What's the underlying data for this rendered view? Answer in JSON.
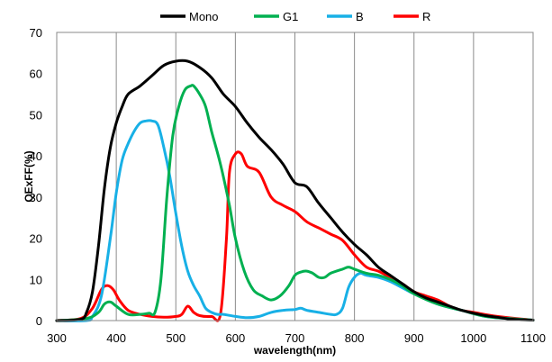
{
  "chart_data": {
    "type": "line",
    "xlabel": "wavelength(nm)",
    "ylabel": "QExFF(%)",
    "xlim": [
      300,
      1100
    ],
    "ylim": [
      0,
      70
    ],
    "x_ticks": [
      300,
      400,
      500,
      600,
      700,
      800,
      900,
      1000,
      1100
    ],
    "y_ticks": [
      0,
      10,
      20,
      30,
      40,
      50,
      60,
      70
    ],
    "grid": "vertical",
    "legend_position": "top",
    "series": [
      {
        "name": "Mono",
        "color": "#000000",
        "points": [
          [
            300,
            0
          ],
          [
            340,
            0.3
          ],
          [
            350,
            2
          ],
          [
            360,
            7
          ],
          [
            370,
            18
          ],
          [
            380,
            32
          ],
          [
            390,
            42
          ],
          [
            400,
            48
          ],
          [
            410,
            52
          ],
          [
            420,
            55
          ],
          [
            440,
            57
          ],
          [
            460,
            59.5
          ],
          [
            480,
            62
          ],
          [
            500,
            63
          ],
          [
            520,
            63
          ],
          [
            540,
            61.5
          ],
          [
            560,
            59
          ],
          [
            580,
            55
          ],
          [
            600,
            52
          ],
          [
            620,
            48
          ],
          [
            640,
            44.5
          ],
          [
            660,
            41.5
          ],
          [
            680,
            38
          ],
          [
            700,
            33.5
          ],
          [
            720,
            32.5
          ],
          [
            740,
            28.5
          ],
          [
            760,
            25
          ],
          [
            780,
            21.5
          ],
          [
            800,
            18.5
          ],
          [
            820,
            16
          ],
          [
            840,
            13
          ],
          [
            860,
            11
          ],
          [
            880,
            9
          ],
          [
            900,
            7
          ],
          [
            920,
            5.5
          ],
          [
            940,
            4.5
          ],
          [
            960,
            3.5
          ],
          [
            980,
            2.5
          ],
          [
            1000,
            1.8
          ],
          [
            1020,
            1.2
          ],
          [
            1040,
            0.8
          ],
          [
            1060,
            0.4
          ],
          [
            1080,
            0.2
          ],
          [
            1100,
            0.1
          ]
        ]
      },
      {
        "name": "G1",
        "color": "#00B050",
        "points": [
          [
            300,
            0
          ],
          [
            350,
            0.5
          ],
          [
            370,
            2
          ],
          [
            380,
            4
          ],
          [
            390,
            4.5
          ],
          [
            400,
            3.5
          ],
          [
            420,
            1.5
          ],
          [
            440,
            1.5
          ],
          [
            455,
            1.8
          ],
          [
            465,
            2
          ],
          [
            475,
            10
          ],
          [
            485,
            30
          ],
          [
            495,
            45
          ],
          [
            505,
            52
          ],
          [
            515,
            56
          ],
          [
            525,
            57
          ],
          [
            530,
            57
          ],
          [
            540,
            55
          ],
          [
            550,
            52
          ],
          [
            560,
            46
          ],
          [
            575,
            38
          ],
          [
            590,
            28
          ],
          [
            600,
            20
          ],
          [
            615,
            12
          ],
          [
            630,
            7.5
          ],
          [
            645,
            6
          ],
          [
            660,
            5
          ],
          [
            675,
            6
          ],
          [
            690,
            8.5
          ],
          [
            700,
            11
          ],
          [
            710,
            11.8
          ],
          [
            720,
            12
          ],
          [
            730,
            11.5
          ],
          [
            740,
            10.5
          ],
          [
            750,
            10.5
          ],
          [
            760,
            11.5
          ],
          [
            780,
            12.5
          ],
          [
            790,
            13
          ],
          [
            800,
            12.5
          ],
          [
            820,
            11.5
          ],
          [
            840,
            11
          ],
          [
            860,
            10
          ],
          [
            880,
            8.5
          ],
          [
            900,
            6.5
          ],
          [
            940,
            4
          ],
          [
            980,
            2.5
          ],
          [
            1020,
            1
          ],
          [
            1060,
            0.5
          ],
          [
            1100,
            0.1
          ]
        ]
      },
      {
        "name": "B",
        "color": "#18B0E6",
        "points": [
          [
            300,
            0
          ],
          [
            350,
            0
          ],
          [
            360,
            1
          ],
          [
            375,
            6
          ],
          [
            390,
            20
          ],
          [
            400,
            31
          ],
          [
            410,
            39
          ],
          [
            420,
            43
          ],
          [
            430,
            46
          ],
          [
            440,
            48
          ],
          [
            450,
            48.5
          ],
          [
            460,
            48.5
          ],
          [
            470,
            47.5
          ],
          [
            480,
            42
          ],
          [
            490,
            35
          ],
          [
            500,
            26
          ],
          [
            510,
            18
          ],
          [
            520,
            12
          ],
          [
            530,
            8.5
          ],
          [
            540,
            6
          ],
          [
            550,
            3
          ],
          [
            560,
            2
          ],
          [
            570,
            1.5
          ],
          [
            580,
            1.5
          ],
          [
            600,
            1
          ],
          [
            620,
            0.7
          ],
          [
            640,
            1
          ],
          [
            660,
            2
          ],
          [
            680,
            2.5
          ],
          [
            700,
            2.7
          ],
          [
            710,
            3
          ],
          [
            720,
            2.5
          ],
          [
            740,
            2
          ],
          [
            760,
            1.5
          ],
          [
            770,
            1.5
          ],
          [
            780,
            3
          ],
          [
            790,
            8
          ],
          [
            800,
            10.5
          ],
          [
            810,
            11.5
          ],
          [
            820,
            11
          ],
          [
            840,
            10.5
          ],
          [
            860,
            9.5
          ],
          [
            880,
            8
          ],
          [
            900,
            6.5
          ],
          [
            940,
            4
          ],
          [
            980,
            2.5
          ],
          [
            1020,
            1
          ],
          [
            1060,
            0.5
          ],
          [
            1100,
            0.1
          ]
        ]
      },
      {
        "name": "R",
        "color": "#FF0000",
        "points": [
          [
            300,
            0
          ],
          [
            340,
            0.5
          ],
          [
            360,
            3
          ],
          [
            375,
            7.5
          ],
          [
            385,
            8.5
          ],
          [
            395,
            7.5
          ],
          [
            405,
            5
          ],
          [
            420,
            2.5
          ],
          [
            440,
            1.5
          ],
          [
            460,
            1
          ],
          [
            480,
            0.8
          ],
          [
            500,
            1
          ],
          [
            510,
            1.5
          ],
          [
            520,
            3.5
          ],
          [
            530,
            2
          ],
          [
            540,
            1.2
          ],
          [
            560,
            1
          ],
          [
            575,
            1.5
          ],
          [
            585,
            20
          ],
          [
            590,
            36
          ],
          [
            600,
            40.5
          ],
          [
            610,
            40.5
          ],
          [
            620,
            37.5
          ],
          [
            640,
            36
          ],
          [
            660,
            30
          ],
          [
            680,
            28
          ],
          [
            700,
            26.5
          ],
          [
            720,
            24
          ],
          [
            740,
            22.5
          ],
          [
            760,
            21
          ],
          [
            780,
            19.5
          ],
          [
            800,
            16
          ],
          [
            820,
            13
          ],
          [
            840,
            12
          ],
          [
            860,
            10.5
          ],
          [
            880,
            9
          ],
          [
            900,
            7
          ],
          [
            920,
            6
          ],
          [
            940,
            5
          ],
          [
            960,
            3.5
          ],
          [
            980,
            2.5
          ],
          [
            1000,
            2
          ],
          [
            1040,
            1
          ],
          [
            1100,
            0.1
          ]
        ]
      }
    ]
  }
}
